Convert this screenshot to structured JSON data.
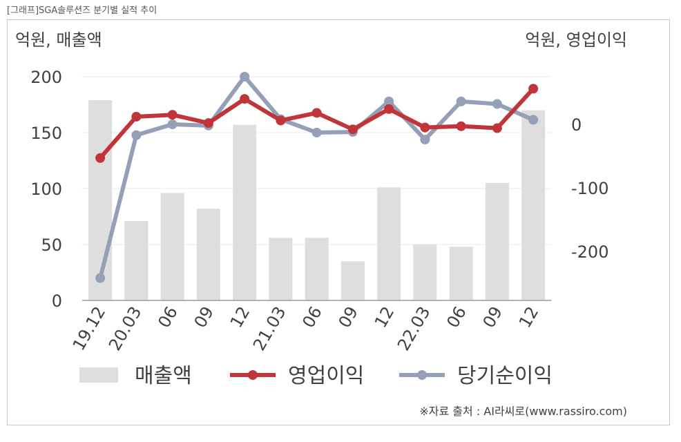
{
  "caption": "[그래프]SGA솔루션즈 분기별 실적 추이",
  "source": "※자료 출처 : AI라씨로(www.rassiro.com)",
  "chart_data": {
    "type": "bar+line",
    "categories": [
      "19.12",
      "20.03",
      "06",
      "09",
      "12",
      "21.03",
      "06",
      "09",
      "12",
      "22.03",
      "06",
      "09",
      "12"
    ],
    "left_axis": {
      "unit_label": "억원, 매출액",
      "ylim": [
        0,
        200
      ],
      "ticks": [
        "0",
        "50",
        "100",
        "150",
        "200"
      ]
    },
    "right_axis": {
      "unit_label": "억원, 영업이익",
      "ticks": [
        "-200",
        "-100",
        "0"
      ]
    },
    "series": [
      {
        "name": "매출액",
        "type": "bar",
        "axis": "left",
        "color": "#dedede",
        "values": [
          179,
          71,
          96,
          82,
          157,
          56,
          56,
          35,
          101,
          50,
          48,
          105,
          170
        ]
      },
      {
        "name": "영업이익",
        "type": "line",
        "axis": "right",
        "color": "#c0353a",
        "values": [
          -53,
          12,
          15,
          2,
          40,
          6,
          18,
          -8,
          24,
          -5,
          -3,
          -6,
          56
        ]
      },
      {
        "name": "당기순이익",
        "type": "line",
        "axis": "right",
        "color": "#94a0b8",
        "values": [
          -242,
          -17,
          0,
          -2,
          75,
          8,
          -13,
          -12,
          36,
          -24,
          36,
          32,
          7
        ]
      }
    ],
    "legend_position": "bottom",
    "grid": true
  }
}
